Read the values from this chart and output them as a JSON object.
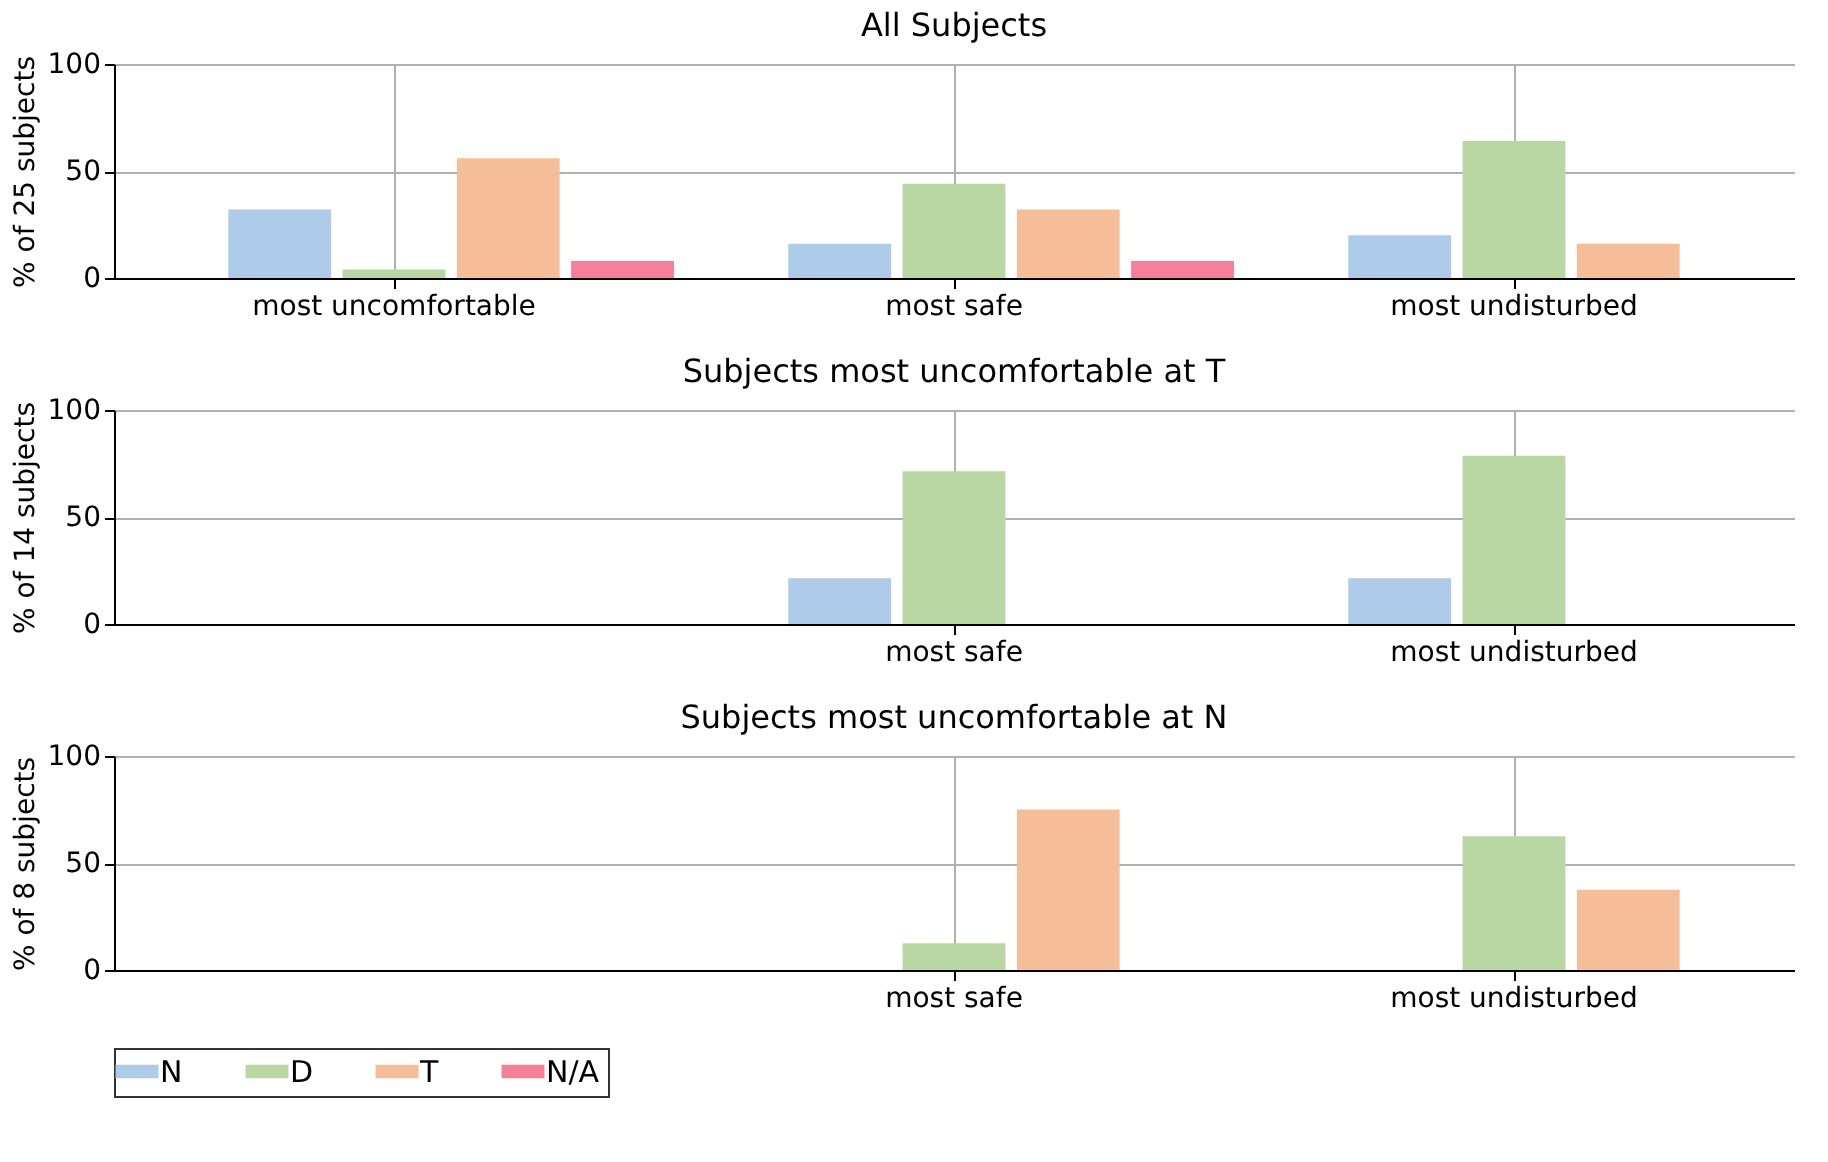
{
  "chart_data": [
    {
      "type": "bar",
      "title": "All Subjects",
      "ylabel": "% of 25 subjects",
      "categories": [
        "most uncomfortable",
        "most safe",
        "most undisturbed"
      ],
      "ylim": [
        0,
        100
      ],
      "yticks": [
        0,
        50,
        100
      ],
      "grid": true,
      "legend": "bottom",
      "series": [
        {
          "name": "N",
          "color": "#aecbea",
          "values": [
            32,
            16,
            20
          ]
        },
        {
          "name": "D",
          "color": "#b8d7a3",
          "values": [
            4,
            44,
            64
          ]
        },
        {
          "name": "T",
          "color": "#f6be98",
          "values": [
            56,
            32,
            16
          ]
        },
        {
          "name": "N/A",
          "color": "#f48197",
          "values": [
            8,
            8,
            0
          ]
        }
      ]
    },
    {
      "type": "bar",
      "title": "Subjects most uncomfortable at T",
      "ylabel": "% of 14 subjects",
      "categories": [
        null,
        "most safe",
        "most undisturbed"
      ],
      "ylim": [
        0,
        100
      ],
      "yticks": [
        0,
        50,
        100
      ],
      "grid": true,
      "legend": "bottom",
      "series": [
        {
          "name": "N",
          "color": "#aecbea",
          "values": [
            null,
            21.4,
            21.4
          ]
        },
        {
          "name": "D",
          "color": "#b8d7a3",
          "values": [
            null,
            71.4,
            78.6
          ]
        },
        {
          "name": "T",
          "color": "#f6be98",
          "values": [
            null,
            0,
            0
          ]
        },
        {
          "name": "N/A",
          "color": "#f48197",
          "values": [
            null,
            0,
            0
          ]
        }
      ]
    },
    {
      "type": "bar",
      "title": "Subjects most uncomfortable at N",
      "ylabel": "% of 8 subjects",
      "categories": [
        null,
        "most safe",
        "most undisturbed"
      ],
      "ylim": [
        0,
        100
      ],
      "yticks": [
        0,
        50,
        100
      ],
      "grid": true,
      "legend": "bottom",
      "series": [
        {
          "name": "N",
          "color": "#aecbea",
          "values": [
            null,
            0,
            0
          ]
        },
        {
          "name": "D",
          "color": "#b8d7a3",
          "values": [
            null,
            12.5,
            62.5
          ]
        },
        {
          "name": "T",
          "color": "#f6be98",
          "values": [
            null,
            75,
            37.5
          ]
        },
        {
          "name": "N/A",
          "color": "#f48197",
          "values": [
            null,
            0,
            0
          ]
        }
      ]
    }
  ]
}
